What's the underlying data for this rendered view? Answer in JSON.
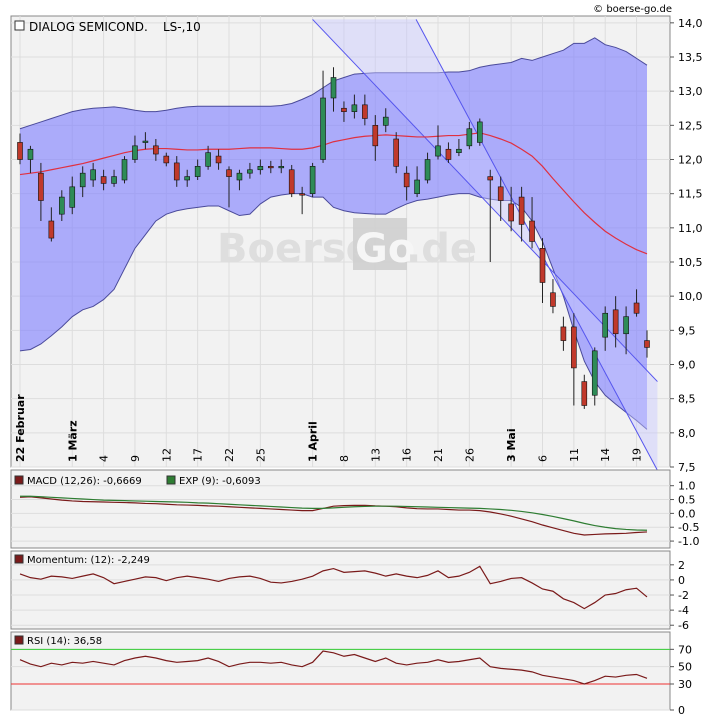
{
  "source_label": "© boerse-go.de",
  "watermark": {
    "left": "Boerse",
    "box": "Go",
    "right": ".de"
  },
  "colors": {
    "band_fill": "#8080ff",
    "band_line": "#4a4a9a",
    "ma_line": "#e03040",
    "channel_fill": "#c8c8ff",
    "channel_line": "#5555ee",
    "up_body": "#2e8b57",
    "down_body": "#c0392b",
    "macd_line": "#7a1a1a",
    "signal_line": "#2e7d32",
    "momentum_line": "#7a1a1a",
    "rsi_line": "#7a1a1a",
    "rsi_upper": "#33cc33",
    "rsi_lower": "#ee3333",
    "oversold_fill": "#ff5555",
    "bg": "#f2f2f2",
    "grid": "#dddddd"
  },
  "chart_data": [
    {
      "type": "candlestick",
      "title": "DIALOG SEMICOND.",
      "subtitle": "LS-,10",
      "ylim": [
        7.5,
        14.1
      ],
      "yticks": [
        "7,5",
        "8,0",
        "8,5",
        "9,0",
        "9,5",
        "10,0",
        "10,5",
        "11,0",
        "11,5",
        "12,0",
        "12,5",
        "13,0",
        "13,5",
        "14,0"
      ],
      "x_labels": [
        {
          "i": 0,
          "label": "22 Februar",
          "bold": true
        },
        {
          "i": 5,
          "label": "1 März",
          "bold": true
        },
        {
          "i": 8,
          "label": "4"
        },
        {
          "i": 11,
          "label": "9"
        },
        {
          "i": 14,
          "label": "12"
        },
        {
          "i": 17,
          "label": "17"
        },
        {
          "i": 20,
          "label": "22"
        },
        {
          "i": 23,
          "label": "25"
        },
        {
          "i": 28,
          "label": "1 April",
          "bold": true
        },
        {
          "i": 31,
          "label": "8"
        },
        {
          "i": 34,
          "label": "13"
        },
        {
          "i": 37,
          "label": "16"
        },
        {
          "i": 40,
          "label": "21"
        },
        {
          "i": 43,
          "label": "26"
        },
        {
          "i": 47,
          "label": "3 Mai",
          "bold": true
        },
        {
          "i": 50,
          "label": "6"
        },
        {
          "i": 53,
          "label": "11"
        },
        {
          "i": 56,
          "label": "14"
        },
        {
          "i": 59,
          "label": "19"
        }
      ],
      "candles": [
        [
          12.25,
          12.0,
          12.38,
          11.93
        ],
        [
          12.0,
          12.15,
          12.2,
          11.8
        ],
        [
          11.8,
          11.4,
          11.95,
          11.1
        ],
        [
          11.1,
          10.85,
          11.3,
          10.8
        ],
        [
          11.2,
          11.45,
          11.55,
          11.1
        ],
        [
          11.3,
          11.6,
          11.75,
          11.2
        ],
        [
          11.6,
          11.8,
          11.9,
          11.45
        ],
        [
          11.7,
          11.85,
          11.95,
          11.6
        ],
        [
          11.75,
          11.65,
          11.85,
          11.55
        ],
        [
          11.65,
          11.75,
          11.85,
          11.6
        ],
        [
          11.7,
          12.0,
          12.05,
          11.65
        ],
        [
          12.0,
          12.2,
          12.35,
          11.95
        ],
        [
          12.25,
          12.27,
          12.4,
          12.15
        ],
        [
          12.2,
          12.08,
          12.3,
          11.98
        ],
        [
          12.05,
          11.95,
          12.1,
          11.9
        ],
        [
          11.95,
          11.7,
          12.05,
          11.6
        ],
        [
          11.7,
          11.75,
          11.85,
          11.6
        ],
        [
          11.75,
          11.9,
          12.0,
          11.7
        ],
        [
          11.9,
          12.1,
          12.2,
          11.85
        ],
        [
          12.05,
          11.95,
          12.15,
          11.85
        ],
        [
          11.85,
          11.75,
          11.9,
          11.3
        ],
        [
          11.7,
          11.8,
          11.85,
          11.55
        ],
        [
          11.8,
          11.85,
          11.95,
          11.72
        ],
        [
          11.85,
          11.9,
          12.0,
          11.78
        ],
        [
          11.9,
          11.88,
          11.98,
          11.8
        ],
        [
          11.9,
          11.9,
          12.0,
          11.8
        ],
        [
          11.85,
          11.5,
          11.92,
          11.45
        ],
        [
          11.5,
          11.48,
          11.6,
          11.2
        ],
        [
          11.5,
          11.9,
          11.95,
          11.45
        ],
        [
          12.0,
          12.9,
          13.3,
          11.95
        ],
        [
          12.9,
          13.2,
          13.35,
          12.7
        ],
        [
          12.75,
          12.7,
          12.85,
          12.55
        ],
        [
          12.7,
          12.8,
          12.95,
          12.6
        ],
        [
          12.8,
          12.6,
          12.95,
          12.5
        ],
        [
          12.5,
          12.2,
          12.65,
          11.98
        ],
        [
          12.5,
          12.62,
          12.75,
          12.4
        ],
        [
          12.3,
          11.9,
          12.4,
          11.8
        ],
        [
          11.8,
          11.6,
          11.9,
          11.4
        ],
        [
          11.5,
          11.7,
          11.9,
          11.45
        ],
        [
          11.7,
          12.0,
          12.1,
          11.65
        ],
        [
          12.05,
          12.2,
          12.5,
          12.0
        ],
        [
          12.15,
          12.0,
          12.25,
          11.95
        ],
        [
          12.1,
          12.15,
          12.3,
          12.05
        ],
        [
          12.2,
          12.45,
          12.55,
          12.15
        ],
        [
          12.25,
          12.55,
          12.6,
          12.2
        ],
        [
          11.75,
          11.7,
          11.85,
          10.5
        ],
        [
          11.6,
          11.4,
          11.75,
          11.1
        ],
        [
          11.35,
          11.1,
          11.6,
          10.95
        ],
        [
          11.45,
          11.05,
          11.6,
          10.8
        ],
        [
          11.1,
          10.8,
          11.45,
          10.7
        ],
        [
          10.7,
          10.2,
          10.85,
          9.9
        ],
        [
          10.05,
          9.85,
          10.25,
          9.75
        ],
        [
          9.55,
          9.35,
          9.7,
          9.2
        ],
        [
          9.55,
          8.95,
          9.75,
          8.4
        ],
        [
          8.75,
          8.4,
          8.85,
          8.35
        ],
        [
          8.55,
          9.2,
          9.25,
          8.4
        ],
        [
          9.4,
          9.75,
          9.85,
          9.2
        ],
        [
          9.8,
          9.45,
          10.0,
          9.25
        ],
        [
          9.45,
          9.7,
          9.85,
          9.15
        ],
        [
          9.9,
          9.75,
          10.1,
          9.7
        ],
        [
          9.35,
          9.25,
          9.5,
          9.1
        ]
      ],
      "moving_average": [
        11.78,
        11.8,
        11.82,
        11.85,
        11.88,
        11.91,
        11.94,
        11.98,
        12.02,
        12.06,
        12.1,
        12.13,
        12.15,
        12.16,
        12.16,
        12.15,
        12.14,
        12.14,
        12.15,
        12.15,
        12.15,
        12.16,
        12.17,
        12.17,
        12.17,
        12.16,
        12.15,
        12.15,
        12.17,
        12.21,
        12.26,
        12.29,
        12.32,
        12.34,
        12.35,
        12.36,
        12.35,
        12.34,
        12.33,
        12.33,
        12.34,
        12.35,
        12.35,
        12.37,
        12.39,
        12.35,
        12.3,
        12.24,
        12.15,
        12.05,
        11.9,
        11.72,
        11.55,
        11.38,
        11.22,
        11.08,
        10.95,
        10.85,
        10.76,
        10.68,
        10.62
      ],
      "bollinger_upper": [
        12.45,
        12.5,
        12.55,
        12.6,
        12.65,
        12.7,
        12.73,
        12.75,
        12.76,
        12.77,
        12.75,
        12.72,
        12.7,
        12.7,
        12.72,
        12.75,
        12.77,
        12.78,
        12.78,
        12.78,
        12.78,
        12.78,
        12.78,
        12.78,
        12.78,
        12.79,
        12.82,
        12.88,
        12.95,
        13.05,
        13.15,
        13.2,
        13.25,
        13.26,
        13.27,
        13.27,
        13.27,
        13.27,
        13.27,
        13.27,
        13.27,
        13.28,
        13.28,
        13.3,
        13.35,
        13.38,
        13.4,
        13.42,
        13.48,
        13.45,
        13.5,
        13.55,
        13.6,
        13.7,
        13.7,
        13.78,
        13.68,
        13.64,
        13.58,
        13.48,
        13.38
      ],
      "bollinger_lower": [
        9.2,
        9.22,
        9.3,
        9.42,
        9.55,
        9.7,
        9.8,
        9.85,
        9.95,
        10.1,
        10.4,
        10.7,
        10.9,
        11.1,
        11.2,
        11.25,
        11.28,
        11.3,
        11.32,
        11.32,
        11.25,
        11.18,
        11.2,
        11.35,
        11.45,
        11.48,
        11.5,
        11.5,
        11.45,
        11.45,
        11.3,
        11.25,
        11.22,
        11.21,
        11.2,
        11.2,
        11.28,
        11.35,
        11.4,
        11.42,
        11.45,
        11.48,
        11.5,
        11.5,
        11.45,
        11.42,
        11.4,
        11.4,
        11.3,
        11.1,
        10.8,
        10.4,
        10.0,
        9.5,
        9.05,
        8.75,
        8.55,
        8.42,
        8.3,
        8.18,
        8.05
      ],
      "channel": {
        "upper": [
          [
            28.0,
            14.05
          ],
          [
            61.0,
            8.75
          ]
        ],
        "lower": [
          [
            37.9,
            14.05
          ],
          [
            61.0,
            7.45
          ]
        ]
      },
      "watermark": true
    },
    {
      "type": "line",
      "title": "MACD (12,26): -0,6669",
      "legend": "EXP (9): -0,6093",
      "ylim": [
        -1.25,
        1.35
      ],
      "yticks": [
        "-1.0",
        "-0.5",
        "0.0",
        "0.5",
        "1.0"
      ],
      "series": [
        {
          "name": "MACD (12,26)",
          "values": [
            0.58,
            0.6,
            0.56,
            0.52,
            0.48,
            0.45,
            0.43,
            0.42,
            0.41,
            0.4,
            0.39,
            0.38,
            0.36,
            0.35,
            0.33,
            0.31,
            0.3,
            0.29,
            0.27,
            0.26,
            0.24,
            0.22,
            0.2,
            0.18,
            0.16,
            0.14,
            0.12,
            0.1,
            0.1,
            0.18,
            0.26,
            0.28,
            0.29,
            0.29,
            0.27,
            0.26,
            0.24,
            0.2,
            0.17,
            0.16,
            0.16,
            0.14,
            0.12,
            0.12,
            0.1,
            0.05,
            -0.02,
            -0.1,
            -0.2,
            -0.3,
            -0.42,
            -0.52,
            -0.62,
            -0.72,
            -0.78,
            -0.76,
            -0.74,
            -0.73,
            -0.72,
            -0.69,
            -0.67
          ]
        },
        {
          "name": "EXP (9)",
          "values": [
            0.62,
            0.62,
            0.6,
            0.58,
            0.56,
            0.54,
            0.52,
            0.5,
            0.48,
            0.47,
            0.46,
            0.45,
            0.44,
            0.43,
            0.42,
            0.41,
            0.4,
            0.38,
            0.37,
            0.35,
            0.33,
            0.31,
            0.29,
            0.27,
            0.25,
            0.23,
            0.21,
            0.19,
            0.18,
            0.18,
            0.2,
            0.22,
            0.24,
            0.25,
            0.26,
            0.26,
            0.26,
            0.25,
            0.24,
            0.23,
            0.22,
            0.21,
            0.2,
            0.19,
            0.18,
            0.16,
            0.14,
            0.11,
            0.07,
            0.02,
            -0.04,
            -0.11,
            -0.19,
            -0.27,
            -0.36,
            -0.44,
            -0.5,
            -0.55,
            -0.58,
            -0.6,
            -0.61
          ]
        }
      ]
    },
    {
      "type": "line",
      "title": "Momentum: (12): -2,249",
      "ylim": [
        -6.5,
        3.3
      ],
      "yticks": [
        "-6",
        "-4",
        "-2",
        "0",
        "2"
      ],
      "series": [
        {
          "name": "Momentum (12)",
          "values": [
            0.8,
            0.3,
            0.1,
            0.5,
            0.4,
            0.2,
            0.5,
            0.8,
            0.3,
            -0.5,
            -0.2,
            0.1,
            0.4,
            0.3,
            -0.1,
            0.3,
            0.5,
            0.3,
            0.1,
            -0.2,
            0.2,
            0.4,
            0.5,
            0.2,
            -0.3,
            -0.4,
            -0.2,
            0.1,
            0.5,
            1.2,
            1.5,
            1.0,
            1.1,
            1.2,
            0.9,
            0.5,
            0.8,
            0.5,
            0.3,
            0.6,
            1.2,
            0.3,
            0.5,
            1.0,
            1.8,
            -0.5,
            -0.2,
            0.2,
            0.3,
            -0.4,
            -1.2,
            -1.5,
            -2.5,
            -3.0,
            -3.8,
            -3.0,
            -2.0,
            -1.8,
            -1.3,
            -1.1,
            -2.25
          ]
        }
      ]
    },
    {
      "type": "line",
      "title": "RSI (14): 36,58",
      "ylim": [
        0,
        90
      ],
      "yticks": [
        "0",
        "30",
        "50",
        "70"
      ],
      "levels": [
        {
          "value": 70,
          "label": "70"
        },
        {
          "value": 30,
          "label": "30"
        }
      ],
      "series": [
        {
          "name": "RSI (14)",
          "values": [
            58,
            53,
            50,
            54,
            52,
            55,
            54,
            56,
            54,
            52,
            57,
            60,
            62,
            60,
            57,
            55,
            56,
            57,
            60,
            56,
            50,
            53,
            55,
            55,
            54,
            55,
            52,
            50,
            55,
            68,
            66,
            62,
            64,
            60,
            56,
            60,
            54,
            52,
            54,
            55,
            58,
            55,
            56,
            58,
            60,
            50,
            48,
            47,
            46,
            44,
            40,
            38,
            36,
            34,
            30,
            34,
            39,
            38,
            40,
            41,
            36.6
          ]
        }
      ]
    }
  ]
}
